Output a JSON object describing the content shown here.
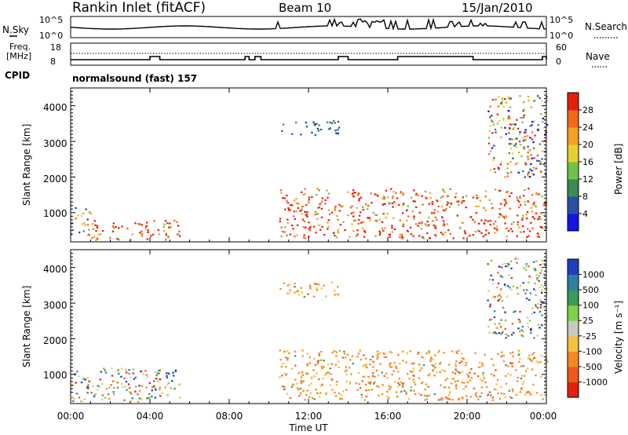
{
  "header": {
    "station": "Rankin Inlet (fitACF)",
    "beam": "Beam 10",
    "date": "15/Jan/2010"
  },
  "nsky_panel": {
    "left_label": "N.Sky",
    "right_label": "N.Search",
    "left_ticks": [
      "10^5",
      "10^0"
    ],
    "right_ticks": [
      "10^5",
      "10^0"
    ]
  },
  "freq_panel": {
    "left_label_1": "Freq.",
    "left_label_2": "[MHz]",
    "left_ticks": [
      "18",
      "8"
    ],
    "right_label": "Nave",
    "right_ticks": [
      "60",
      "0"
    ]
  },
  "cpid_panel": {
    "label": "CPID",
    "program": "normalsound (fast) 157"
  },
  "x_axis": {
    "title": "Time UT",
    "ticks": [
      "00:00",
      "04:00",
      "08:00",
      "12:00",
      "16:00",
      "20:00",
      "00:00"
    ]
  },
  "y_axis": {
    "title": "Slant Range [km]",
    "ticks": [
      "1000",
      "2000",
      "3000",
      "4000"
    ]
  },
  "power_colorbar": {
    "title": "Power [dB]",
    "labels": [
      "4",
      "8",
      "12",
      "16",
      "20",
      "24",
      "28"
    ],
    "colors": [
      "#1414e6",
      "#2a4fa3",
      "#3b8a4e",
      "#70c24a",
      "#e6d02a",
      "#f3a125",
      "#f06a1a",
      "#e81e0f"
    ]
  },
  "velocity_colorbar": {
    "title": "Velocity [m s⁻¹]",
    "labels": [
      "1000",
      "500",
      "100",
      "25",
      "-25",
      "-100",
      "-500",
      "-1000"
    ],
    "colors": [
      "#1f3fbf",
      "#2f7fa0",
      "#3a9a5a",
      "#7fd04a",
      "#c8c8c4",
      "#f5c040",
      "#f58a20",
      "#f05a18",
      "#e81e0f"
    ]
  },
  "chart_data": {
    "type": "heatmap",
    "x_range_hours": [
      0,
      24
    ],
    "y_range_km": [
      180,
      4500
    ],
    "power_regions": [
      {
        "t0": 0.0,
        "t1": 1.0,
        "r0": 300,
        "r1": 1200,
        "level": "mixed"
      },
      {
        "t0": 1.0,
        "t1": 5.5,
        "r0": 250,
        "r1": 800,
        "level": "high"
      },
      {
        "t0": 10.5,
        "t1": 24.0,
        "r0": 300,
        "r1": 1700,
        "level": "high"
      },
      {
        "t0": 10.5,
        "t1": 13.5,
        "r0": 3200,
        "r1": 3600,
        "level": "low"
      },
      {
        "t0": 21.0,
        "t1": 24.0,
        "r0": 2000,
        "r1": 4300,
        "level": "mixed"
      }
    ],
    "velocity_regions": [
      {
        "t0": 0.0,
        "t1": 5.5,
        "r0": 250,
        "r1": 1200,
        "sign": "mixed"
      },
      {
        "t0": 10.5,
        "t1": 24.0,
        "r0": 300,
        "r1": 1700,
        "sign": "away"
      },
      {
        "t0": 10.5,
        "t1": 13.5,
        "r0": 3200,
        "r1": 3600,
        "sign": "away"
      },
      {
        "t0": 21.0,
        "t1": 24.0,
        "r0": 2000,
        "r1": 4300,
        "sign": "mixed"
      }
    ]
  }
}
